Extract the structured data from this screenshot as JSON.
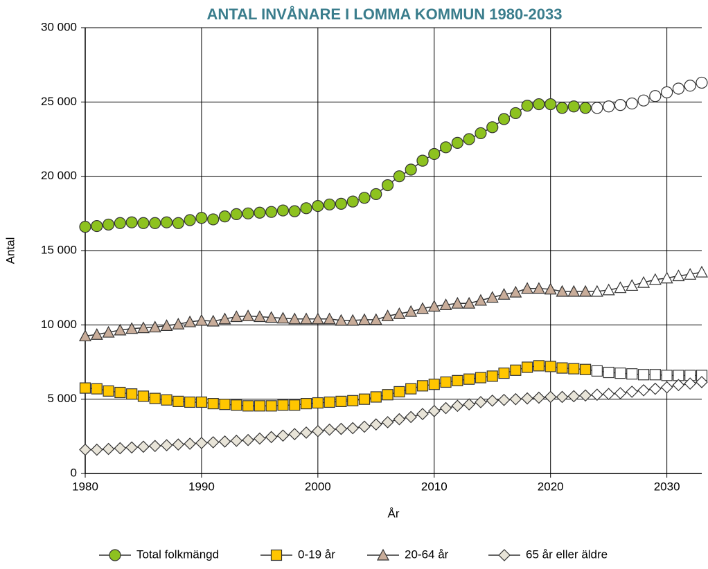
{
  "chart_data": {
    "type": "line",
    "title": "ANTAL INVÅNARE I LOMMA KOMMUN 1980-2033",
    "xlabel": "År",
    "ylabel": "Antal",
    "x": [
      1980,
      1981,
      1982,
      1983,
      1984,
      1985,
      1986,
      1987,
      1988,
      1989,
      1990,
      1991,
      1992,
      1993,
      1994,
      1995,
      1996,
      1997,
      1998,
      1999,
      2000,
      2001,
      2002,
      2003,
      2004,
      2005,
      2006,
      2007,
      2008,
      2009,
      2010,
      2011,
      2012,
      2013,
      2014,
      2015,
      2016,
      2017,
      2018,
      2019,
      2020,
      2021,
      2022,
      2023,
      2024,
      2025,
      2026,
      2027,
      2028,
      2029,
      2030,
      2031,
      2032,
      2033
    ],
    "xlim": [
      1980,
      2033
    ],
    "xticks": [
      1980,
      1990,
      2000,
      2010,
      2020,
      2030
    ],
    "ylim": [
      0,
      30000
    ],
    "yticks": [
      0,
      {
        "value": 5000,
        "label": "5 000"
      },
      {
        "value": 10000,
        "label": "10 000"
      },
      {
        "value": 15000,
        "label": "15 000"
      },
      {
        "value": 20000,
        "label": "20 000"
      },
      {
        "value": 25000,
        "label": "25 000"
      },
      {
        "value": 30000,
        "label": "30 000"
      }
    ],
    "grid": true,
    "legend": "bottom",
    "hollow_from": 2024,
    "line_color": "#333333",
    "series": [
      {
        "name": "Total folkmängd",
        "color": "#8dc21f",
        "marker": "circle",
        "values": [
          16600,
          16650,
          16750,
          16850,
          16900,
          16850,
          16850,
          16900,
          16850,
          17050,
          17200,
          17100,
          17300,
          17450,
          17500,
          17550,
          17600,
          17700,
          17650,
          17850,
          18000,
          18100,
          18150,
          18300,
          18550,
          18800,
          19400,
          20000,
          20450,
          21050,
          21500,
          21950,
          22250,
          22500,
          22900,
          23300,
          23850,
          24250,
          24750,
          24850,
          24850,
          24600,
          24700,
          24600,
          24600,
          24700,
          24800,
          24900,
          25100,
          25400,
          25650,
          25900,
          26100,
          26300
        ]
      },
      {
        "name": "0-19 år",
        "color": "#ffc600",
        "marker": "square",
        "values": [
          5750,
          5700,
          5550,
          5450,
          5350,
          5200,
          5050,
          4950,
          4850,
          4800,
          4800,
          4700,
          4650,
          4600,
          4550,
          4550,
          4550,
          4600,
          4600,
          4700,
          4750,
          4800,
          4850,
          4900,
          5000,
          5150,
          5300,
          5500,
          5700,
          5900,
          6000,
          6150,
          6250,
          6350,
          6450,
          6550,
          6750,
          6950,
          7150,
          7250,
          7200,
          7100,
          7050,
          7000,
          6900,
          6800,
          6750,
          6700,
          6650,
          6650,
          6600,
          6600,
          6600,
          6600
        ]
      },
      {
        "name": "20-64 år",
        "color": "#c9ad9a",
        "marker": "triangle",
        "values": [
          9250,
          9350,
          9500,
          9650,
          9750,
          9800,
          9850,
          9950,
          10050,
          10200,
          10300,
          10250,
          10400,
          10550,
          10600,
          10550,
          10500,
          10450,
          10400,
          10400,
          10400,
          10400,
          10300,
          10300,
          10350,
          10350,
          10600,
          10750,
          10900,
          11100,
          11250,
          11350,
          11450,
          11450,
          11650,
          11850,
          12050,
          12200,
          12450,
          12450,
          12400,
          12250,
          12250,
          12250,
          12250,
          12350,
          12500,
          12650,
          12850,
          13050,
          13150,
          13300,
          13400,
          13550
        ]
      },
      {
        "name": "65 år eller äldre",
        "color": "#e8e4d8",
        "marker": "diamond",
        "values": [
          1600,
          1600,
          1650,
          1700,
          1750,
          1800,
          1850,
          1900,
          1950,
          2000,
          2050,
          2100,
          2150,
          2200,
          2250,
          2350,
          2450,
          2550,
          2650,
          2750,
          2850,
          2950,
          3000,
          3050,
          3150,
          3300,
          3450,
          3650,
          3800,
          4000,
          4200,
          4400,
          4550,
          4650,
          4800,
          4900,
          4950,
          5000,
          5050,
          5100,
          5150,
          5150,
          5200,
          5250,
          5300,
          5350,
          5400,
          5500,
          5600,
          5700,
          5800,
          5950,
          6050,
          6150
        ]
      }
    ]
  }
}
